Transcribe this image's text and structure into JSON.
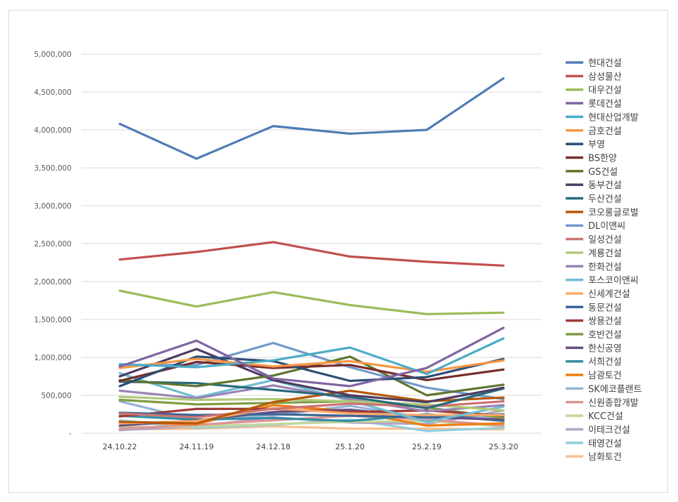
{
  "chart_data": {
    "type": "line",
    "title": "",
    "xlabel": "",
    "ylabel": "",
    "ylim": [
      0,
      5000000
    ],
    "y_ticks": [
      0,
      500000,
      1000000,
      1500000,
      2000000,
      2500000,
      3000000,
      3500000,
      4000000,
      4500000,
      5000000
    ],
    "y_tick_labels": [
      "-",
      "500,000",
      "1,000,000",
      "1,500,000",
      "2,000,000",
      "2,500,000",
      "3,000,000",
      "3,500,000",
      "4,000,000",
      "4,500,000",
      "5,000,000"
    ],
    "grid": true,
    "legend_position": "right",
    "categories": [
      "24.10.22",
      "24.11.19",
      "24.12.18",
      "25.1.20",
      "25.2.19",
      "25.3.20"
    ],
    "series": [
      {
        "name": "현대건설",
        "color": "#4e7db5",
        "values": [
          4080000,
          3620000,
          4050000,
          3950000,
          4000000,
          4680000
        ]
      },
      {
        "name": "삼성물산",
        "color": "#c0504d",
        "values": [
          2290000,
          2390000,
          2520000,
          2330000,
          2260000,
          2210000
        ]
      },
      {
        "name": "대우건설",
        "color": "#9bbb59",
        "values": [
          1880000,
          1670000,
          1860000,
          1690000,
          1570000,
          1590000
        ]
      },
      {
        "name": "롯데건설",
        "color": "#8064a2",
        "values": [
          880000,
          1220000,
          720000,
          620000,
          860000,
          1390000
        ]
      },
      {
        "name": "현대산업개발",
        "color": "#4bacc6",
        "values": [
          910000,
          870000,
          960000,
          1130000,
          780000,
          1250000
        ]
      },
      {
        "name": "금호건설",
        "color": "#f79646",
        "values": [
          860000,
          980000,
          880000,
          950000,
          810000,
          960000
        ]
      },
      {
        "name": "부영",
        "color": "#2c4d75",
        "values": [
          620000,
          1010000,
          950000,
          690000,
          740000,
          980000
        ]
      },
      {
        "name": "BS한양",
        "color": "#772c2a",
        "values": [
          690000,
          940000,
          860000,
          900000,
          700000,
          840000
        ]
      },
      {
        "name": "GS건설",
        "color": "#5f7530",
        "values": [
          700000,
          620000,
          760000,
          1010000,
          500000,
          640000
        ]
      },
      {
        "name": "동부건설",
        "color": "#4d3b62",
        "values": [
          750000,
          1110000,
          700000,
          500000,
          410000,
          600000
        ]
      },
      {
        "name": "두산건설",
        "color": "#276a7c",
        "values": [
          680000,
          660000,
          570000,
          480000,
          330000,
          590000
        ]
      },
      {
        "name": "코오롱글로벌",
        "color": "#b65708",
        "values": [
          150000,
          130000,
          410000,
          560000,
          420000,
          470000
        ]
      },
      {
        "name": "DL이앤씨",
        "color": "#729aca",
        "values": [
          900000,
          900000,
          1190000,
          870000,
          600000,
          450000
        ]
      },
      {
        "name": "일성건설",
        "color": "#cd7371",
        "values": [
          260000,
          210000,
          320000,
          390000,
          350000,
          420000
        ]
      },
      {
        "name": "계룡건설",
        "color": "#afc97a",
        "values": [
          480000,
          440000,
          450000,
          420000,
          380000,
          300000
        ]
      },
      {
        "name": "한화건설",
        "color": "#9983b5",
        "values": [
          560000,
          460000,
          630000,
          450000,
          290000,
          370000
        ]
      },
      {
        "name": "포스코이앤씨",
        "color": "#6fbdd1",
        "values": [
          790000,
          470000,
          700000,
          430000,
          150000,
          350000
        ]
      },
      {
        "name": "신세계건설",
        "color": "#f9ab6b",
        "values": [
          130000,
          160000,
          330000,
          260000,
          240000,
          240000
        ]
      },
      {
        "name": "동문건설",
        "color": "#3a6596",
        "values": [
          270000,
          240000,
          250000,
          230000,
          210000,
          250000
        ]
      },
      {
        "name": "쌍용건설",
        "color": "#9e3a37",
        "values": [
          220000,
          320000,
          320000,
          280000,
          300000,
          230000
        ]
      },
      {
        "name": "호반건설",
        "color": "#7f9c40",
        "values": [
          440000,
          380000,
          400000,
          420000,
          340000,
          200000
        ]
      },
      {
        "name": "한신공영",
        "color": "#664f82",
        "values": [
          100000,
          170000,
          280000,
          310000,
          210000,
          180000
        ]
      },
      {
        "name": "서희건설",
        "color": "#328ea4",
        "values": [
          230000,
          180000,
          200000,
          160000,
          250000,
          160000
        ]
      },
      {
        "name": "남광토건",
        "color": "#ef7d10",
        "values": [
          140000,
          120000,
          370000,
          290000,
          100000,
          130000
        ]
      },
      {
        "name": "SK에코플랜트",
        "color": "#95b3d7",
        "values": [
          420000,
          170000,
          240000,
          360000,
          200000,
          210000
        ]
      },
      {
        "name": "신원종합개발",
        "color": "#da9694",
        "values": [
          60000,
          110000,
          170000,
          230000,
          180000,
          100000
        ]
      },
      {
        "name": "KCC건설",
        "color": "#c3d69b",
        "values": [
          80000,
          90000,
          120000,
          150000,
          160000,
          90000
        ]
      },
      {
        "name": "이테크건설",
        "color": "#b3a2c7",
        "values": [
          40000,
          90000,
          210000,
          140000,
          120000,
          300000
        ]
      },
      {
        "name": "태영건설",
        "color": "#93cddd",
        "values": [
          170000,
          70000,
          110000,
          180000,
          30000,
          70000
        ]
      },
      {
        "name": "남화토건",
        "color": "#fac090",
        "values": [
          50000,
          60000,
          90000,
          60000,
          60000,
          50000
        ]
      }
    ]
  }
}
